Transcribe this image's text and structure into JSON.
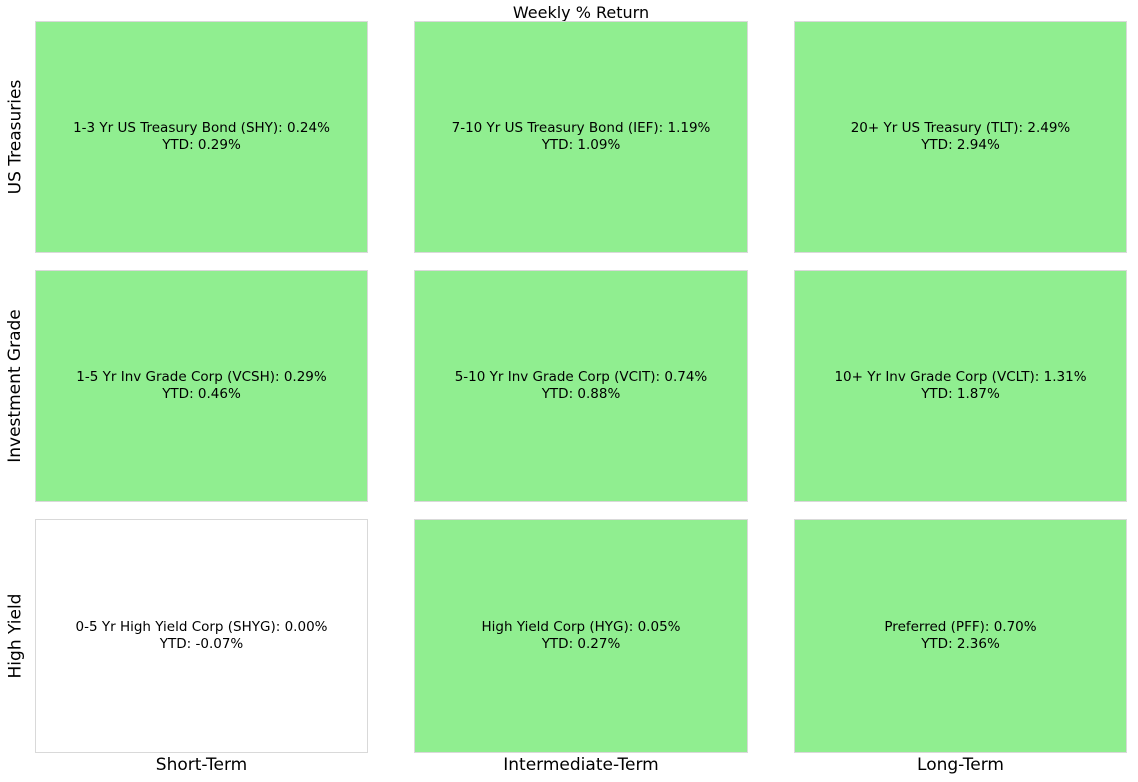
{
  "title": "Weekly % Return",
  "colors": {
    "positive_cell": "#90EE90",
    "neutral_cell": "#FFFFFF",
    "cell_border": "#d9d9d9",
    "text": "#000000"
  },
  "chart_data": {
    "type": "heatmap",
    "title": "Weekly % Return",
    "columns": [
      "Short-Term",
      "Intermediate-Term",
      "Long-Term"
    ],
    "rows": [
      "US Treasuries",
      "Investment Grade",
      "High Yield"
    ],
    "legend_position": "none",
    "grid": false,
    "cells": [
      [
        {
          "name": "1-3 Yr US Treasury Bond",
          "ticker": "SHY",
          "weekly_return_pct": 0.24,
          "ytd_return_pct": 0.29,
          "line1": "1-3 Yr US Treasury Bond (SHY): 0.24%",
          "line2": "YTD: 0.29%",
          "color": "#90EE90"
        },
        {
          "name": "7-10 Yr US Treasury Bond",
          "ticker": "IEF",
          "weekly_return_pct": 1.19,
          "ytd_return_pct": 1.09,
          "line1": "7-10 Yr US Treasury Bond (IEF): 1.19%",
          "line2": "YTD: 1.09%",
          "color": "#90EE90"
        },
        {
          "name": "20+ Yr US Treasury",
          "ticker": "TLT",
          "weekly_return_pct": 2.49,
          "ytd_return_pct": 2.94,
          "line1": "20+ Yr US Treasury (TLT): 2.49%",
          "line2": "YTD: 2.94%",
          "color": "#90EE90"
        }
      ],
      [
        {
          "name": "1-5 Yr Inv Grade Corp",
          "ticker": "VCSH",
          "weekly_return_pct": 0.29,
          "ytd_return_pct": 0.46,
          "line1": "1-5 Yr Inv Grade Corp (VCSH): 0.29%",
          "line2": "YTD: 0.46%",
          "color": "#90EE90"
        },
        {
          "name": "5-10 Yr Inv Grade Corp",
          "ticker": "VCIT",
          "weekly_return_pct": 0.74,
          "ytd_return_pct": 0.88,
          "line1": "5-10 Yr Inv Grade Corp (VCIT): 0.74%",
          "line2": "YTD: 0.88%",
          "color": "#90EE90"
        },
        {
          "name": "10+ Yr Inv Grade Corp",
          "ticker": "VCLT",
          "weekly_return_pct": 1.31,
          "ytd_return_pct": 1.87,
          "line1": "10+ Yr Inv Grade Corp (VCLT): 1.31%",
          "line2": "YTD: 1.87%",
          "color": "#90EE90"
        }
      ],
      [
        {
          "name": "0-5 Yr High Yield Corp",
          "ticker": "SHYG",
          "weekly_return_pct": 0.0,
          "ytd_return_pct": -0.07,
          "line1": "0-5 Yr High Yield Corp (SHYG): 0.00%",
          "line2": "YTD: -0.07%",
          "color": "#FFFFFF"
        },
        {
          "name": "High Yield Corp",
          "ticker": "HYG",
          "weekly_return_pct": 0.05,
          "ytd_return_pct": 0.27,
          "line1": "High Yield Corp (HYG): 0.05%",
          "line2": "YTD: 0.27%",
          "color": "#90EE90"
        },
        {
          "name": "Preferred",
          "ticker": "PFF",
          "weekly_return_pct": 0.7,
          "ytd_return_pct": 2.36,
          "line1": "Preferred (PFF): 0.70%",
          "line2": "YTD: 2.36%",
          "color": "#90EE90"
        }
      ]
    ]
  }
}
